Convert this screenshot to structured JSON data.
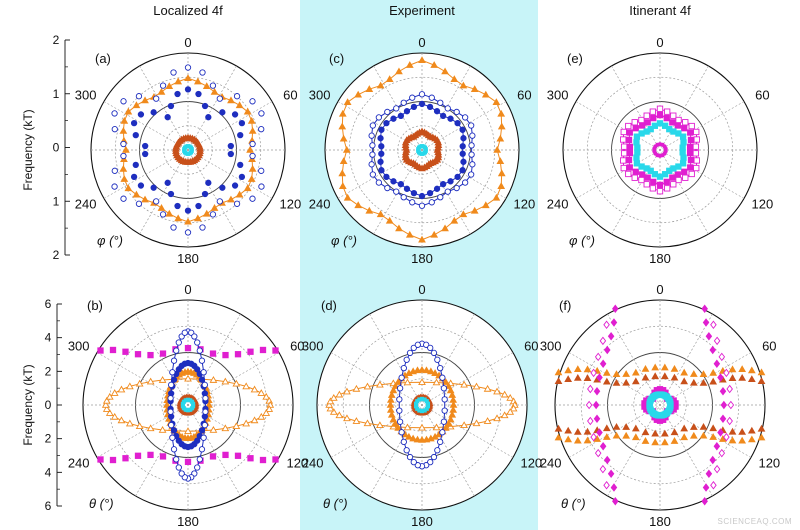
{
  "column_titles": {
    "left": "Localized 4f",
    "middle": "Experiment",
    "right": "Itinerant 4f"
  },
  "shade_color": "#c8f4f8",
  "axis_titles": {
    "top": "Frequency (kT)",
    "bottom": "Frequency (kT)"
  },
  "angle_labels": {
    "a0": "0",
    "a60": "60",
    "a120": "120",
    "a180": "180",
    "a240": "240",
    "a300": "300"
  },
  "var_labels": {
    "phi": "φ (°)",
    "theta": "θ (°)"
  },
  "watermark": "SCIENCEAQ.COM",
  "colors": {
    "blue": "#1e2ebf",
    "orange": "#f08a1c",
    "rust": "#c8501a",
    "cyan": "#29d8ea",
    "magenta": "#e01fd0",
    "pink": "#c85fc8"
  },
  "chart_data": [
    {
      "type": "scatter",
      "panel": "(a)",
      "coord": "polar",
      "angle_var": "φ (°)",
      "rlim": [
        0,
        2
      ],
      "top_axis_ticks": [
        "2",
        "1",
        "0",
        "1",
        "2"
      ],
      "radial_gridlines": [
        0.5,
        1.0,
        1.5,
        2.0
      ],
      "series": [
        {
          "color": "orange",
          "marker": "filled-triangle",
          "shape": "hexagon",
          "r_flat": 1.28,
          "r_vertex": 1.48
        },
        {
          "color": "blue",
          "marker": "filled-circle",
          "shape": "six-lobe arcs",
          "r_range": [
            0.75,
            1.25
          ]
        },
        {
          "color": "blue",
          "marker": "open-circle",
          "shape": "six-lobe arcs",
          "r_range": [
            1.2,
            1.7
          ]
        },
        {
          "color": "rust",
          "marker": "filled-triangle",
          "shape": "ring",
          "r": 0.25
        },
        {
          "color": "cyan",
          "marker": "filled-square",
          "shape": "ring",
          "r": 0.08
        }
      ]
    },
    {
      "type": "scatter",
      "panel": "(c)",
      "coord": "polar",
      "angle_var": "φ (°)",
      "rlim": [
        0,
        2
      ],
      "series": [
        {
          "color": "orange",
          "marker": "filled-triangle",
          "shape": "hexagon",
          "r_flat": 1.55,
          "r_vertex": 1.85
        },
        {
          "color": "blue",
          "marker": "open-circle",
          "shape": "hexagon",
          "r_flat": 1.0,
          "r_vertex": 1.15
        },
        {
          "color": "blue",
          "marker": "filled-circle",
          "shape": "hexagon",
          "r_flat": 0.82,
          "r_vertex": 0.95
        },
        {
          "color": "rust",
          "marker": "filled-triangle",
          "shape": "hexagon",
          "r_flat": 0.32,
          "r_vertex": 0.38
        },
        {
          "color": "cyan",
          "marker": "filled-square",
          "shape": "ring",
          "r": 0.08
        }
      ]
    },
    {
      "type": "scatter",
      "panel": "(e)",
      "coord": "polar",
      "angle_var": "φ (°)",
      "rlim": [
        0,
        2
      ],
      "series": [
        {
          "color": "magenta",
          "marker": "open-square",
          "shape": "hexagon",
          "r_flat": 0.72,
          "r_vertex": 0.85
        },
        {
          "color": "magenta",
          "marker": "filled-square",
          "shape": "hexagon",
          "r_flat": 0.6,
          "r_vertex": 0.72
        },
        {
          "color": "cyan",
          "marker": "filled-square",
          "shape": "hexagon",
          "r_flat": 0.45,
          "r_vertex": 0.55
        },
        {
          "color": "magenta",
          "marker": "filled-circle",
          "shape": "ring",
          "r": 0.12
        }
      ]
    },
    {
      "type": "scatter",
      "panel": "(b)",
      "coord": "polar",
      "angle_var": "θ (°)",
      "rlim": [
        0,
        6
      ],
      "top_axis_ticks": [
        "6",
        "4",
        "2",
        "0",
        "2",
        "4",
        "6"
      ],
      "radial_gridlines": [
        1.5,
        3.0,
        4.5,
        6.0
      ],
      "series": [
        {
          "color": "magenta",
          "marker": "filled-square",
          "shape": "two horizontal bands",
          "y": 3.0,
          "x_range": [
            -5.0,
            5.0
          ]
        },
        {
          "color": "orange",
          "marker": "open-triangle",
          "shape": "horizontal ellipse",
          "rx": 4.7,
          "ry": 1.5
        },
        {
          "color": "orange",
          "marker": "filled-triangle",
          "shape": "vertical ellipse",
          "rx": 1.2,
          "ry": 1.9
        },
        {
          "color": "blue",
          "marker": "filled-circle",
          "shape": "vertical ellipse",
          "rx": 1.0,
          "ry": 2.4
        },
        {
          "color": "blue",
          "marker": "open-circle",
          "shape": "vertical ellipse",
          "rx": 1.0,
          "ry": 4.2
        },
        {
          "color": "rust",
          "marker": "filled-triangle",
          "shape": "ring",
          "r": 0.5
        },
        {
          "color": "cyan",
          "marker": "filled-square",
          "shape": "ring",
          "r": 0.3
        }
      ]
    },
    {
      "type": "scatter",
      "panel": "(d)",
      "coord": "polar",
      "angle_var": "θ (°)",
      "rlim": [
        0,
        6
      ],
      "series": [
        {
          "color": "orange",
          "marker": "open-triangle",
          "shape": "horizontal ellipse",
          "rx": 5.3,
          "ry": 1.3
        },
        {
          "color": "orange",
          "marker": "filled-triangle",
          "shape": "ellipse",
          "rx": 1.8,
          "ry": 2.0
        },
        {
          "color": "blue",
          "marker": "open-circle",
          "shape": "vertical ellipse",
          "rx": 1.3,
          "ry": 3.5
        },
        {
          "color": "rust",
          "marker": "filled-triangle",
          "shape": "ring",
          "r": 0.5
        },
        {
          "color": "cyan",
          "marker": "filled-square",
          "shape": "ring",
          "r": 0.35
        }
      ]
    },
    {
      "type": "scatter",
      "panel": "(f)",
      "coord": "polar",
      "angle_var": "θ (°)",
      "rlim": [
        0,
        6
      ],
      "series": [
        {
          "color": "orange",
          "marker": "filled-triangle",
          "shape": "two horizontal bands",
          "y": 1.9,
          "x_range": [
            -5.8,
            5.8
          ]
        },
        {
          "color": "rust",
          "marker": "filled-triangle",
          "shape": "two horizontal bands",
          "y": 1.4,
          "x_range": [
            -5.8,
            5.8
          ]
        },
        {
          "color": "magenta",
          "marker": "open-diamond",
          "shape": "two vertical curves",
          "x": 3.7,
          "y_range": [
            -5.5,
            5.5
          ]
        },
        {
          "color": "magenta",
          "marker": "filled-diamond",
          "shape": "two vertical curves",
          "x": 3.3,
          "y_range": [
            -5.5,
            5.5
          ]
        },
        {
          "color": "magenta",
          "marker": "filled-square",
          "shape": "star",
          "r": 0.9
        },
        {
          "color": "cyan",
          "marker": "filled-square",
          "shape": "ring",
          "r": 0.6
        }
      ]
    }
  ]
}
